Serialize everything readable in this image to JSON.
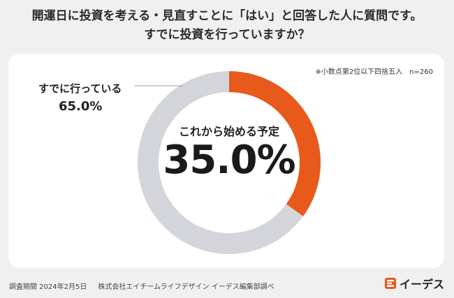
{
  "title_line1": "開運日に投資を考える・見直すことに「はい」と回答した人に質問です。",
  "title_line2": "すでに投資を行っていますか？",
  "note": "※小数点第2位以下四捨五入",
  "sample_size": "n=260",
  "colors": {
    "accent": "#e85a1b",
    "muted": "#d3d5db",
    "background": "#f0f0f0"
  },
  "chart_data": {
    "type": "pie",
    "variant": "donut",
    "slices": [
      {
        "label": "これから始める予定",
        "value": 35.0,
        "display": "35.0%",
        "color": "#e85a1b"
      },
      {
        "label": "すでに行っている",
        "value": 65.0,
        "display": "65.0%",
        "color": "#d3d5db"
      }
    ]
  },
  "footer": {
    "survey_period": "調査期間 2024年2月5日",
    "credit": "株式会社エイチームライフデザイン イーデス編集部調べ"
  },
  "brand": {
    "name": "イーデス",
    "icon": "ideas-logo-icon"
  }
}
